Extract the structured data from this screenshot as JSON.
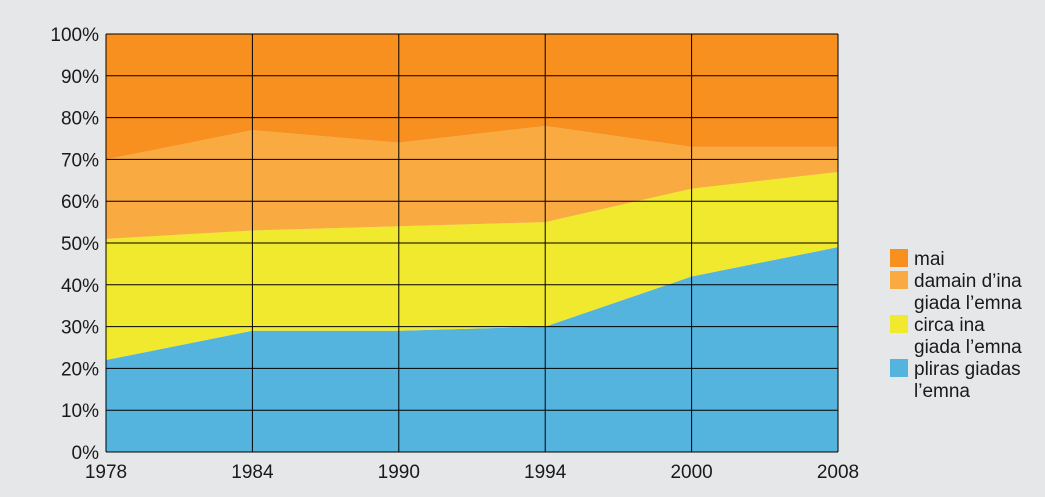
{
  "chart_data": {
    "type": "area",
    "stacked": true,
    "percent": true,
    "x": [
      "1978",
      "1984",
      "1990",
      "1994",
      "2000",
      "2008"
    ],
    "ylim": [
      0,
      100
    ],
    "yticks": [
      "0%",
      "10%",
      "20%",
      "30%",
      "40%",
      "50%",
      "60%",
      "70%",
      "80%",
      "90%",
      "100%"
    ],
    "grid": true,
    "legend_position": "right",
    "series": [
      {
        "name": "pliras giadas l’emna",
        "lines": [
          "pliras giadas",
          "l’emna"
        ],
        "color": "#55b4de",
        "values": [
          22,
          29,
          29,
          30,
          42,
          49
        ]
      },
      {
        "name": "circa ina giada l’emna",
        "lines": [
          "circa ina",
          "giada l’emna"
        ],
        "color": "#f1e92d",
        "values": [
          29,
          24,
          25,
          25,
          21,
          18
        ]
      },
      {
        "name": "damain d’ina giada l’emna",
        "lines": [
          "damain d’ina",
          "giada l’emna"
        ],
        "color": "#f9ab42",
        "values": [
          19,
          24,
          20,
          23,
          10,
          6
        ]
      },
      {
        "name": "mai",
        "lines": [
          "mai"
        ],
        "color": "#f7901e",
        "values": [
          30,
          23,
          26,
          22,
          27,
          27
        ]
      }
    ]
  }
}
